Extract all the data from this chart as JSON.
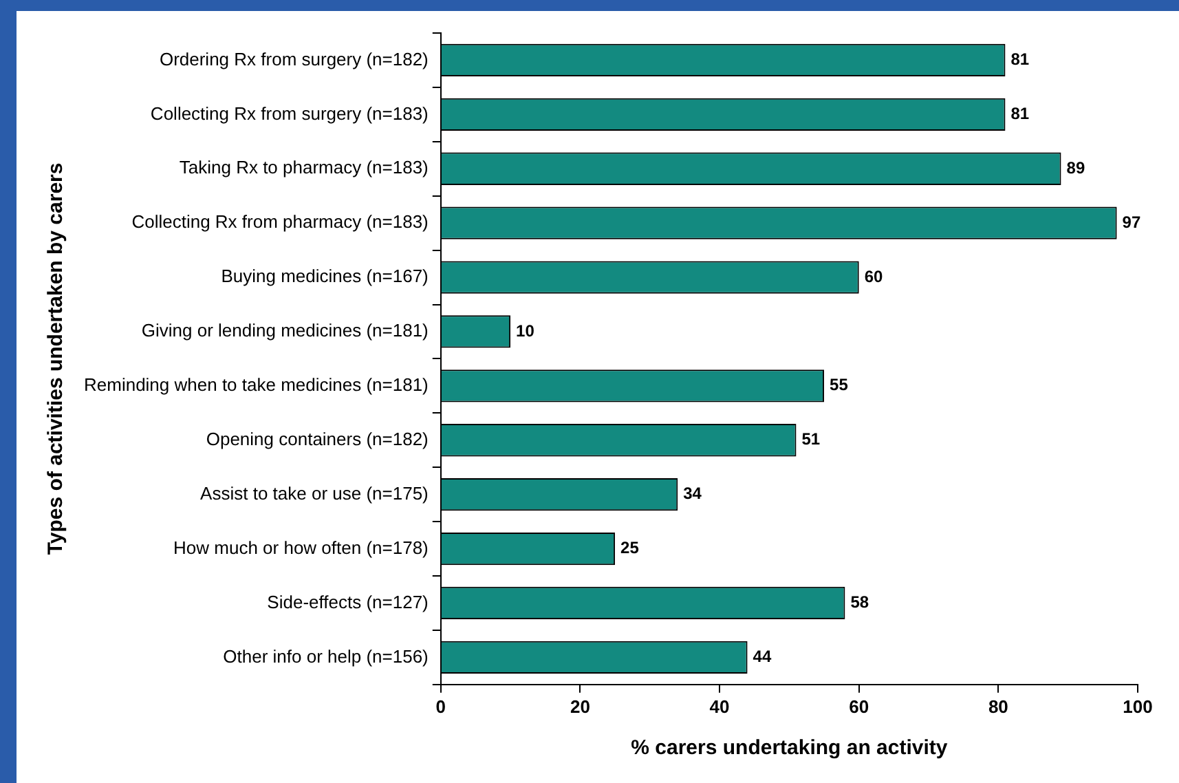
{
  "chart_data": {
    "type": "bar",
    "orientation": "horizontal",
    "xlabel": "% carers undertaking an activity",
    "ylabel": "Types of activities undertaken by carers",
    "categories": [
      "Ordering Rx from surgery (n=182)",
      "Collecting Rx from surgery (n=183)",
      "Taking Rx to pharmacy (n=183)",
      "Collecting Rx from pharmacy (n=183)",
      "Buying medicines (n=167)",
      "Giving or lending medicines (n=181)",
      "Reminding when to take medicines (n=181)",
      "Opening containers (n=182)",
      "Assist to take or use (n=175)",
      "How much or how often (n=178)",
      "Side-effects (n=127)",
      "Other info or help (n=156)"
    ],
    "values": [
      81,
      81,
      89,
      97,
      60,
      10,
      55,
      51,
      34,
      25,
      58,
      44
    ],
    "color": "#138a80",
    "xlim": [
      0,
      100
    ],
    "xticks": [
      0,
      20,
      40,
      60,
      80,
      100
    ],
    "grid": false,
    "legend": false,
    "data_labels": true
  }
}
